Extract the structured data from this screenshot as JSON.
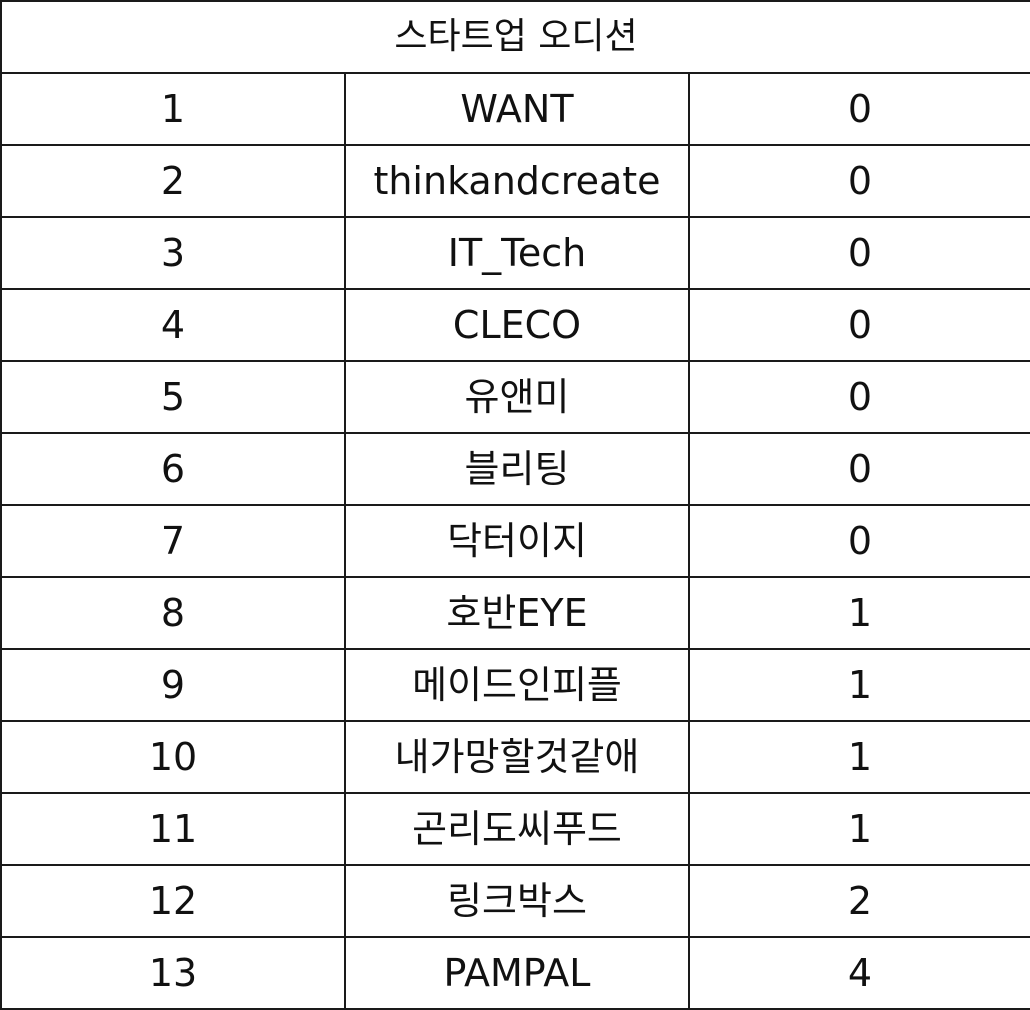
{
  "table": {
    "title": "스타트업 오디션",
    "rows": [
      {
        "rank": "1",
        "name": "WANT",
        "score": "0"
      },
      {
        "rank": "2",
        "name": "thinkandcreate",
        "score": "0"
      },
      {
        "rank": "3",
        "name": "IT_Tech",
        "score": "0"
      },
      {
        "rank": "4",
        "name": "CLECO",
        "score": "0"
      },
      {
        "rank": "5",
        "name": "유앤미",
        "score": "0"
      },
      {
        "rank": "6",
        "name": "블리팅",
        "score": "0"
      },
      {
        "rank": "7",
        "name": "닥터이지",
        "score": "0"
      },
      {
        "rank": "8",
        "name": "호반EYE",
        "score": "1"
      },
      {
        "rank": "9",
        "name": "메이드인피플",
        "score": "1"
      },
      {
        "rank": "10",
        "name": "내가망할것같애",
        "score": "1"
      },
      {
        "rank": "11",
        "name": "곤리도씨푸드",
        "score": "1"
      },
      {
        "rank": "12",
        "name": "링크박스",
        "score": "2"
      },
      {
        "rank": "13",
        "name": "PAMPAL",
        "score": "4"
      }
    ]
  }
}
